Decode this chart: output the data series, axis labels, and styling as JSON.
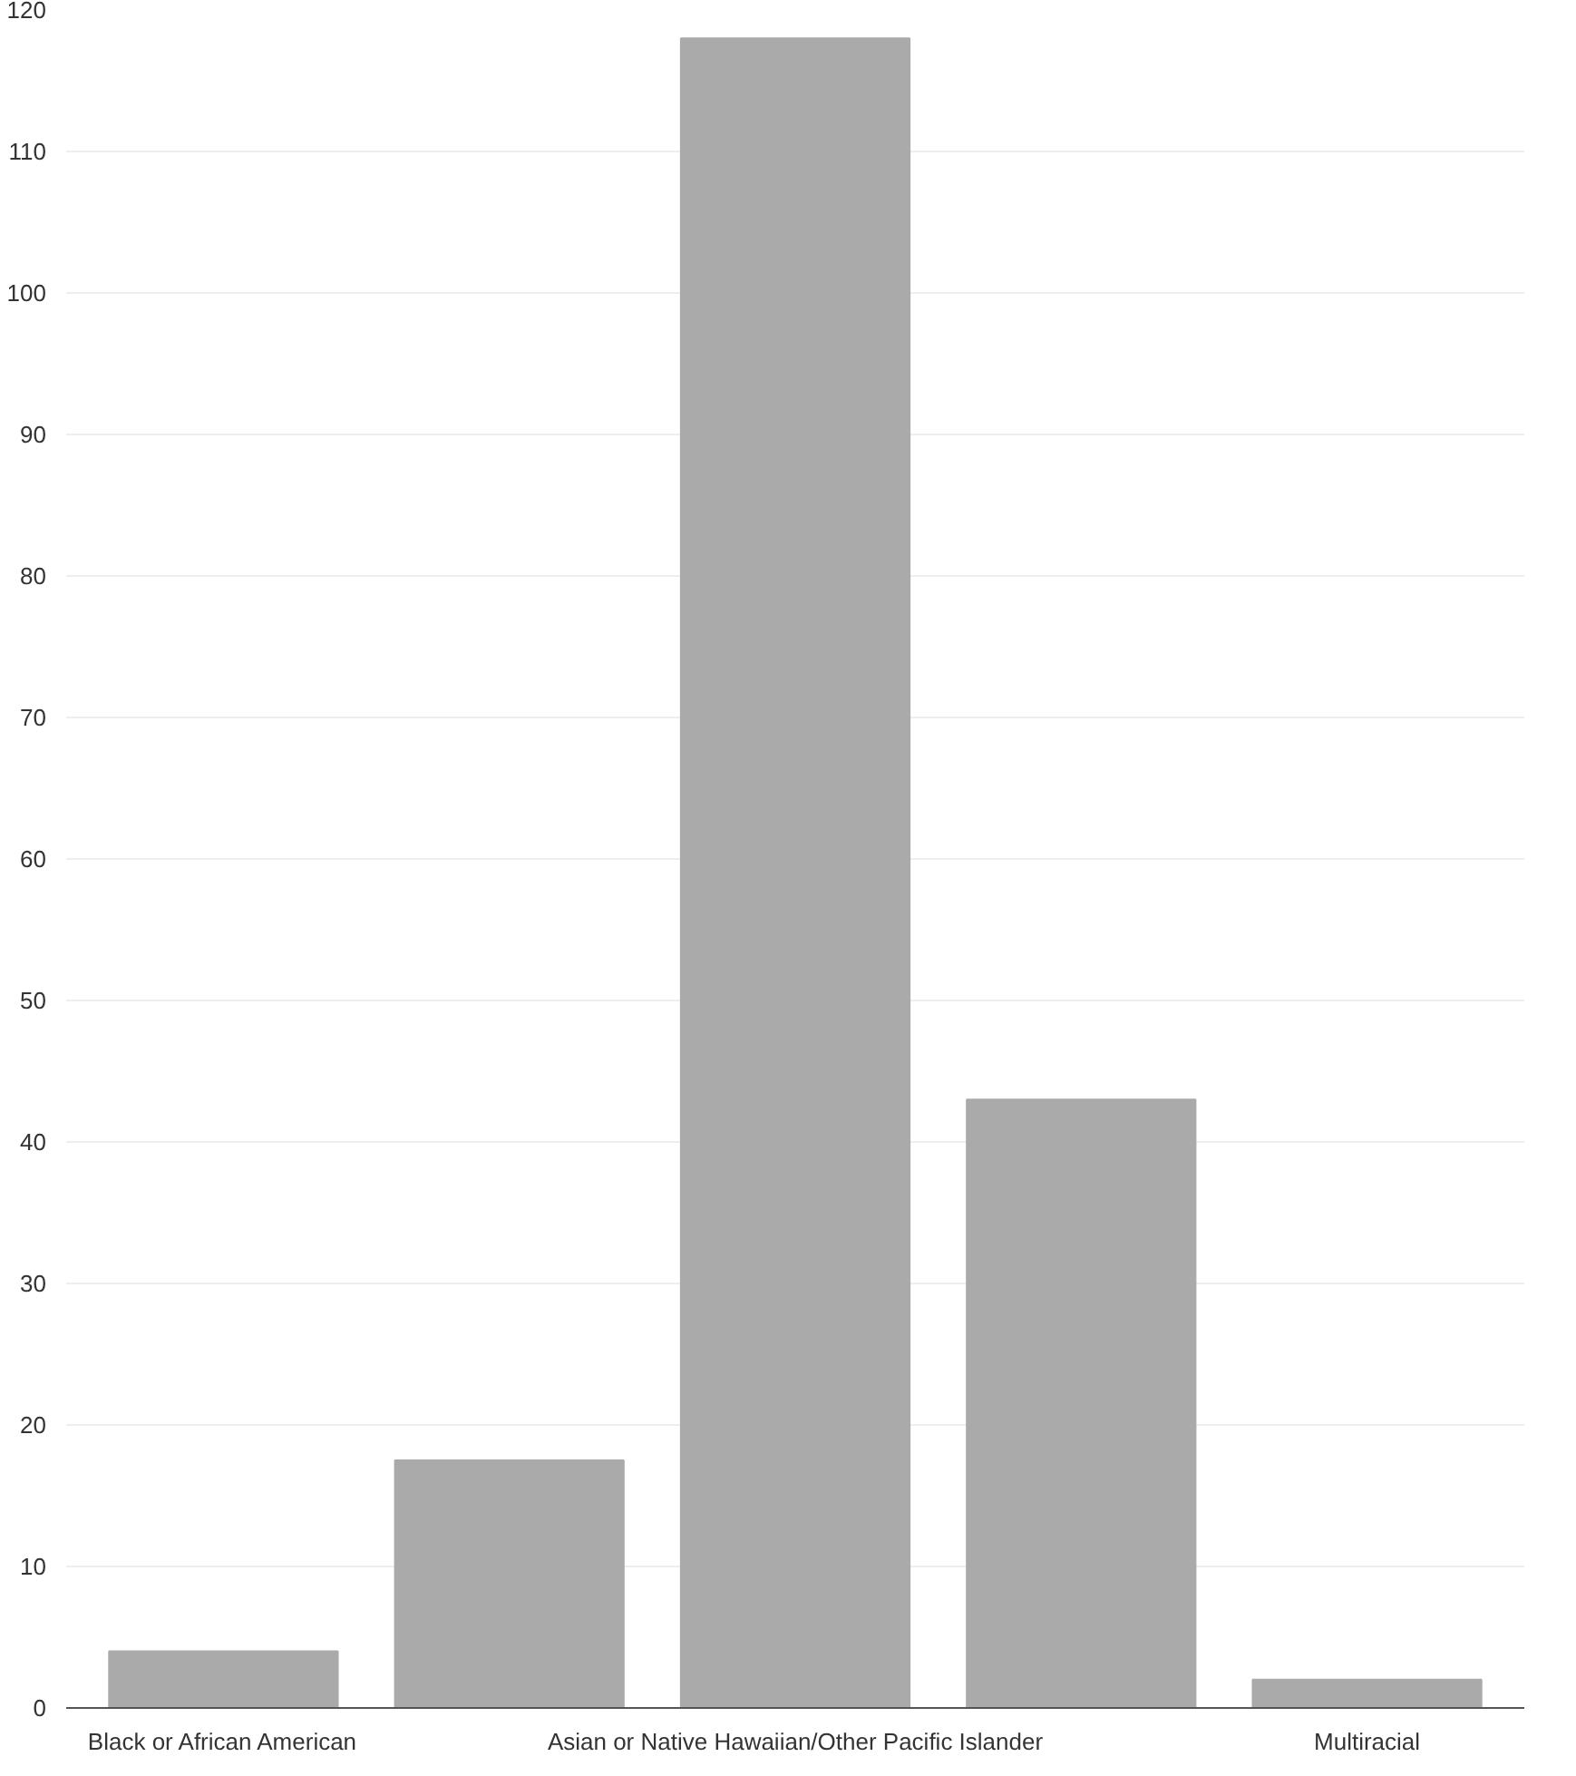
{
  "chart_data": {
    "type": "bar",
    "categories": [
      "Black or African American",
      null,
      "Asian or Native Hawaiian/Other Pacific Islander",
      null,
      "Multiracial"
    ],
    "values": [
      4,
      17.5,
      118,
      43,
      2
    ],
    "color": "#aaaaaa",
    "ylim": [
      0,
      120
    ],
    "yticks": [
      0,
      10,
      20,
      30,
      40,
      50,
      60,
      70,
      80,
      90,
      100,
      110,
      120
    ],
    "grid": "y"
  }
}
